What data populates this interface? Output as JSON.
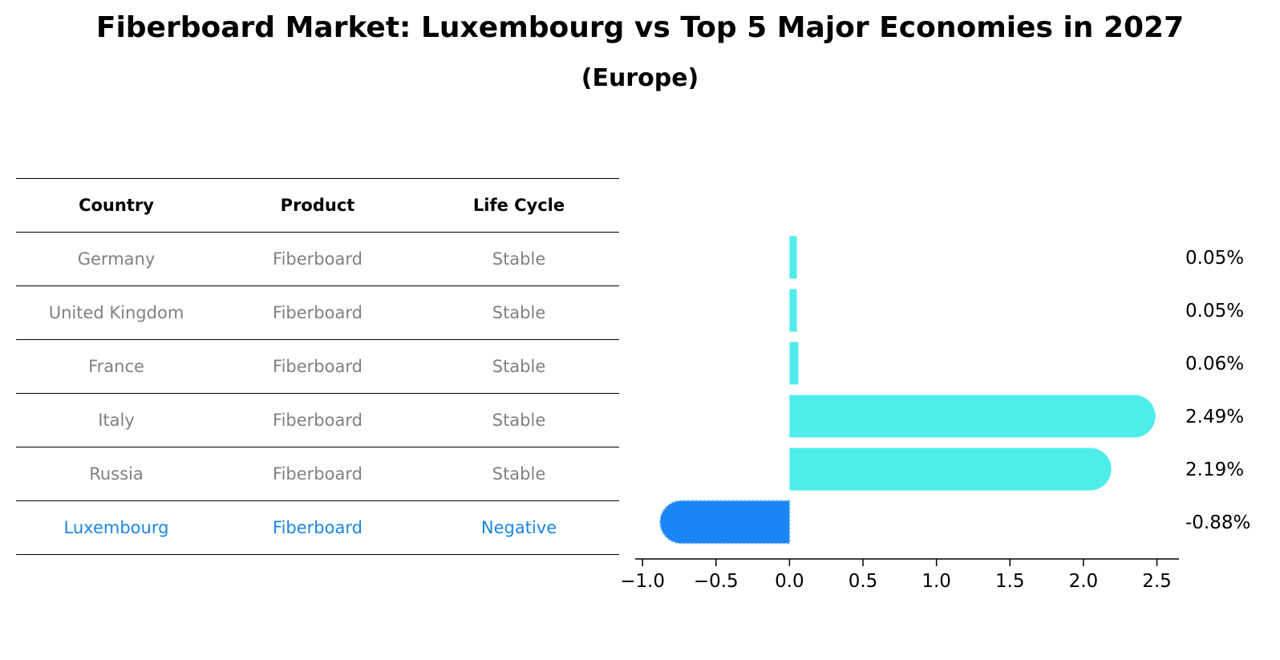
{
  "title": "Fiberboard Market: Luxembourg vs Top 5 Major Economies in 2027",
  "subtitle": "(Europe)",
  "table": {
    "headers": [
      "Country",
      "Product",
      "Life Cycle"
    ],
    "rows": [
      [
        "Germany",
        "Fiberboard",
        "Stable"
      ],
      [
        "United Kingdom",
        "Fiberboard",
        "Stable"
      ],
      [
        "France",
        "Fiberboard",
        "Stable"
      ],
      [
        "Italy",
        "Fiberboard",
        "Stable"
      ],
      [
        "Russia",
        "Fiberboard",
        "Stable"
      ],
      [
        "Luxembourg",
        "Fiberboard",
        "Negative"
      ]
    ]
  },
  "chart_data": {
    "type": "bar",
    "orientation": "horizontal",
    "categories": [
      "Germany",
      "United Kingdom",
      "France",
      "Italy",
      "Russia",
      "Luxembourg"
    ],
    "values": [
      0.05,
      0.05,
      0.06,
      2.49,
      2.19,
      -0.88
    ],
    "value_labels": [
      "0.05%",
      "0.05%",
      "0.06%",
      "2.49%",
      "2.19%",
      "-0.88%"
    ],
    "xlim": [
      -1.05,
      2.65
    ],
    "xticks": [
      -1.0,
      -0.5,
      0.0,
      0.5,
      1.0,
      1.5,
      2.0,
      2.5
    ],
    "xtick_labels": [
      "−1.0",
      "−0.5",
      "0.0",
      "0.5",
      "1.0",
      "1.5",
      "2.0",
      "2.5"
    ],
    "colors": {
      "positive": "#4EEDEA",
      "negative": "#1A85F5"
    },
    "grid": false,
    "legend": "none"
  }
}
